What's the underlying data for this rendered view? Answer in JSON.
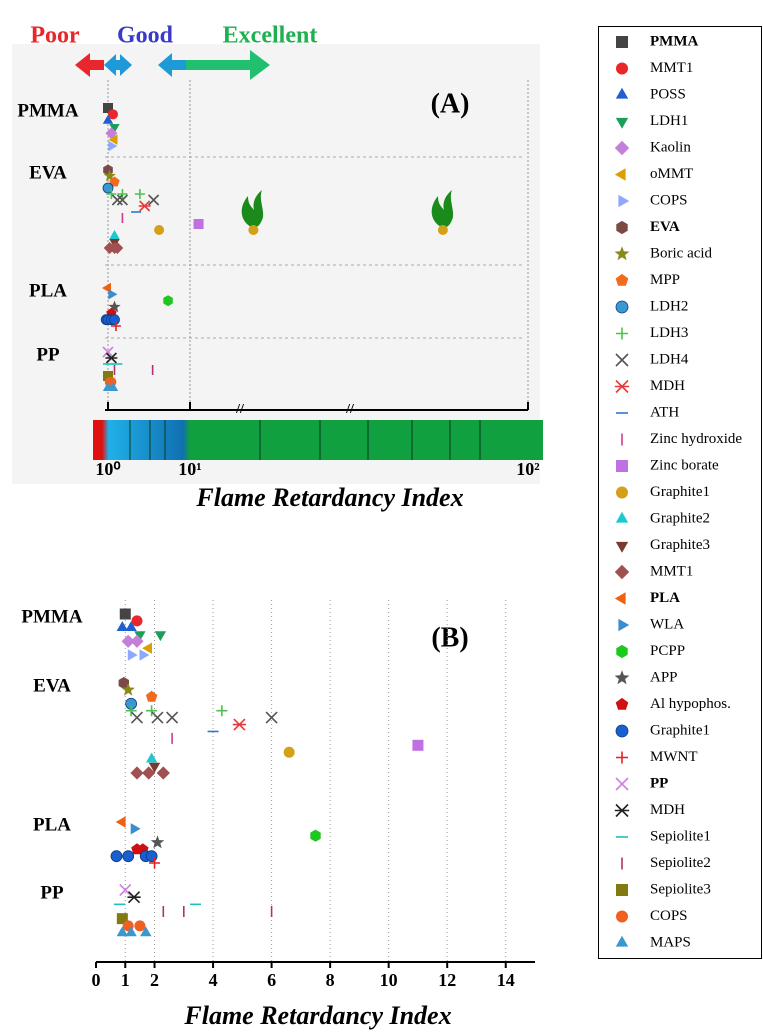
{
  "legend": [
    {
      "name": "PMMA",
      "color": "#444444",
      "marker": "square"
    },
    {
      "name": "MMT1",
      "color": "#e8262b",
      "marker": "circle"
    },
    {
      "name": "POSS",
      "color": "#1f5fd0",
      "marker": "triangle-up"
    },
    {
      "name": "LDH1",
      "color": "#1a9e5a",
      "marker": "triangle-down"
    },
    {
      "name": "Kaolin",
      "color": "#c47fd8",
      "marker": "diamond"
    },
    {
      "name": "oMMT",
      "color": "#d9a000",
      "marker": "triangle-left"
    },
    {
      "name": "COPS",
      "color": "#8fa8ff",
      "marker": "triangle-right"
    },
    {
      "name": "EVA",
      "color": "#7b4a45",
      "marker": "hexagon"
    },
    {
      "name": "Boric acid",
      "color": "#8a8a1a",
      "marker": "star"
    },
    {
      "name": "MPP",
      "color": "#f26a1b",
      "marker": "pentagon"
    },
    {
      "name": "LDH2",
      "color": "#3a98d0",
      "marker": "sphere"
    },
    {
      "name": "LDH3",
      "color": "#4cc24c",
      "marker": "plus"
    },
    {
      "name": "LDH4",
      "color": "#555555",
      "marker": "x"
    },
    {
      "name": "MDH",
      "color": "#e83a3a",
      "marker": "asterisk"
    },
    {
      "name": "ATH",
      "color": "#2a7ad0",
      "marker": "dash"
    },
    {
      "name": "Zinc hydroxide",
      "color": "#d03a8a",
      "marker": "vline"
    },
    {
      "name": "Zinc borate",
      "color": "#c070e0",
      "marker": "square"
    },
    {
      "name": "Graphite1",
      "color": "#d4a017",
      "marker": "circle"
    },
    {
      "name": "Graphite2",
      "color": "#1ec8d0",
      "marker": "triangle-up"
    },
    {
      "name": "Graphite3",
      "color": "#7a3a30",
      "marker": "triangle-down"
    },
    {
      "name": "MMT1",
      "color": "#a05050",
      "marker": "diamond"
    },
    {
      "name": "PLA",
      "color": "#f06010",
      "marker": "triangle-left"
    },
    {
      "name": "WLA",
      "color": "#3a8ed0",
      "marker": "triangle-right"
    },
    {
      "name": "PCPP",
      "color": "#1ec81e",
      "marker": "hexagon"
    },
    {
      "name": "APP",
      "color": "#555555",
      "marker": "star"
    },
    {
      "name": "Al hypophos.",
      "color": "#d01010",
      "marker": "pentagon"
    },
    {
      "name": "Graphite1",
      "color": "#1a5fd0",
      "marker": "sphere"
    },
    {
      "name": "MWNT",
      "color": "#e82020",
      "marker": "plus"
    },
    {
      "name": "PP",
      "color": "#d080e0",
      "marker": "x"
    },
    {
      "name": "MDH",
      "color": "#222222",
      "marker": "asterisk"
    },
    {
      "name": "Sepiolite1",
      "color": "#20c0c0",
      "marker": "dash"
    },
    {
      "name": "Sepiolite2",
      "color": "#b03070",
      "marker": "vline"
    },
    {
      "name": "Sepiolite3",
      "color": "#807a10",
      "marker": "square"
    },
    {
      "name": "COPS",
      "color": "#f06020",
      "marker": "circle"
    },
    {
      "name": "MAPS",
      "color": "#3a98d0",
      "marker": "triangle-up"
    }
  ],
  "chart_data": [
    {
      "type": "scatter",
      "title": "(A)",
      "xlabel": "Flame Retardancy Index",
      "annotations": [
        "Poor",
        "Good",
        "Excellent"
      ],
      "categories": [
        "PMMA",
        "EVA",
        "PLA",
        "PP"
      ],
      "xscale": "log",
      "xlim": [
        0.9,
        110
      ],
      "xticks": [
        {
          "value": 1,
          "label": "10⁰"
        },
        {
          "value": 10,
          "label": "10¹"
        },
        {
          "value": 100,
          "label": "10²"
        }
      ],
      "grid": true,
      "series": [
        {
          "values": [
            1.0
          ]
        },
        {
          "values": [
            1.15
          ]
        },
        {
          "values": [
            1.0
          ]
        },
        {
          "values": [
            1.2
          ]
        },
        {
          "values": [
            1.1
          ]
        },
        {
          "values": [
            1.2
          ]
        },
        {
          "values": [
            1.1
          ]
        },
        {
          "values": [
            1.0
          ]
        },
        {
          "values": [
            1.05
          ]
        },
        {
          "values": [
            1.2
          ]
        },
        {
          "values": [
            1.0
          ]
        },
        {
          "values": [
            1.1,
            1.5,
            2.45
          ]
        },
        {
          "values": [
            1.3,
            1.5,
            3.6
          ]
        },
        {
          "values": [
            2.8
          ]
        },
        {
          "values": [
            2.2
          ]
        },
        {
          "values": [
            1.5
          ]
        },
        {
          "values": [
            10.6
          ]
        },
        {
          "values": [
            4.2,
            15.4,
            56
          ]
        },
        {
          "values": [
            1.2
          ]
        },
        {
          "values": [
            1.2
          ]
        },
        {
          "values": [
            1.05,
            1.2,
            1.3
          ]
        },
        {
          "values": [
            1.0
          ]
        },
        {
          "values": [
            1.1
          ]
        },
        {
          "values": [
            5.4
          ]
        },
        {
          "values": [
            1.2
          ]
        },
        {
          "values": [
            1.1
          ]
        },
        {
          "values": [
            0.95,
            1.0,
            1.1,
            1.2
          ]
        },
        {
          "values": [
            1.25
          ]
        },
        {
          "values": [
            1.0
          ]
        },
        {
          "values": [
            1.1
          ]
        },
        {
          "values": [
            1.0,
            1.3
          ]
        },
        {
          "values": [
            1.2,
            3.5
          ]
        },
        {
          "values": [
            1.0
          ]
        },
        {
          "values": [
            1.05,
            1.1
          ]
        },
        {
          "values": [
            1.0,
            1.15
          ]
        }
      ]
    },
    {
      "type": "scatter",
      "title": "(B)",
      "xlabel": "Flame Retardancy Index",
      "categories": [
        "PMMA",
        "EVA",
        "PLA",
        "PP"
      ],
      "xlim": [
        0,
        15
      ],
      "xticks": [
        0,
        1,
        2,
        4,
        6,
        8,
        10,
        12,
        14
      ],
      "grid": true,
      "series": [
        {
          "values": [
            1.0
          ]
        },
        {
          "values": [
            1.4
          ]
        },
        {
          "values": [
            0.9,
            1.2
          ]
        },
        {
          "values": [
            1.5,
            2.2
          ]
        },
        {
          "values": [
            1.1,
            1.4
          ]
        },
        {
          "values": [
            1.8
          ]
        },
        {
          "values": [
            1.2,
            1.6
          ]
        },
        {
          "values": [
            0.95
          ]
        },
        {
          "values": [
            1.1
          ]
        },
        {
          "values": [
            1.9
          ]
        },
        {
          "values": [
            1.2
          ]
        },
        {
          "values": [
            1.2,
            1.9,
            4.3
          ]
        },
        {
          "values": [
            1.4,
            2.1,
            2.6,
            6.0
          ]
        },
        {
          "values": [
            4.9
          ]
        },
        {
          "values": [
            4.0
          ]
        },
        {
          "values": [
            2.6
          ]
        },
        {
          "values": [
            11.0
          ]
        },
        {
          "values": [
            6.6
          ]
        },
        {
          "values": [
            1.9
          ]
        },
        {
          "values": [
            2.0
          ]
        },
        {
          "values": [
            1.4,
            1.8,
            2.3
          ]
        },
        {
          "values": [
            0.9
          ]
        },
        {
          "values": [
            1.3
          ]
        },
        {
          "values": [
            7.5
          ]
        },
        {
          "values": [
            2.1
          ]
        },
        {
          "values": [
            1.4,
            1.6
          ]
        },
        {
          "values": [
            0.7,
            1.1,
            1.7,
            1.9
          ]
        },
        {
          "values": [
            2.0
          ]
        },
        {
          "values": [
            1.0
          ]
        },
        {
          "values": [
            1.3
          ]
        },
        {
          "values": [
            0.8,
            3.4
          ]
        },
        {
          "values": [
            2.3,
            3.0,
            6.0
          ]
        },
        {
          "values": [
            0.9
          ]
        },
        {
          "values": [
            1.1,
            1.5
          ]
        },
        {
          "values": [
            0.9,
            1.2,
            1.7
          ]
        }
      ]
    }
  ]
}
